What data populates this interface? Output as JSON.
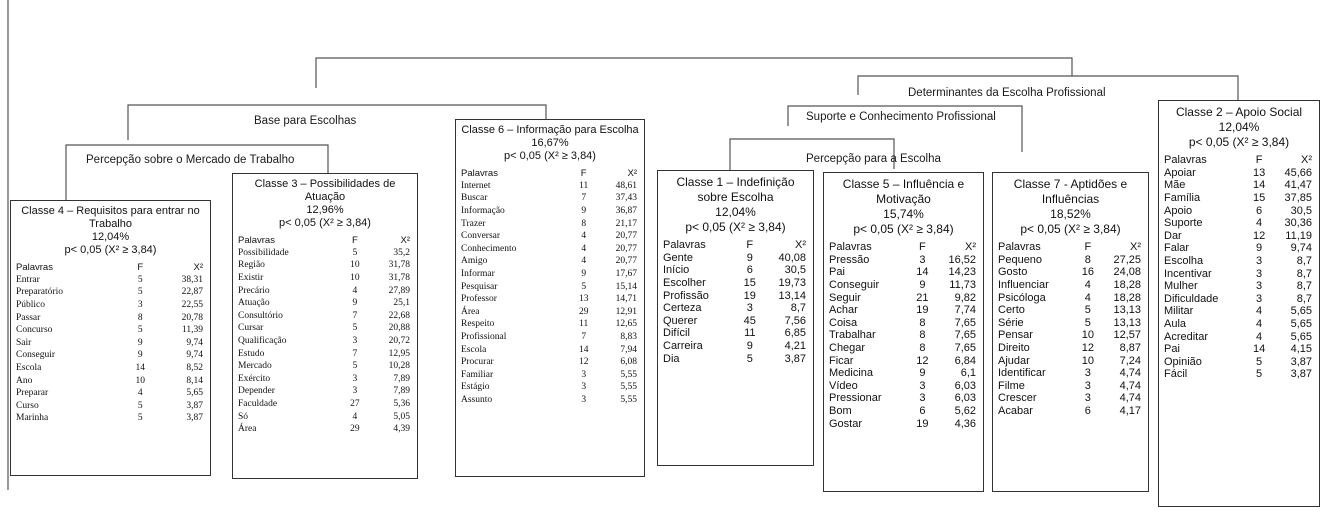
{
  "labels": {
    "determinantes": "Determinantes da Escolha Profissional",
    "base": "Base para Escolhas",
    "suporte": "Suporte e Conhecimento Profissional",
    "percepcao_mercado": "Percepção sobre o Mercado de Trabalho",
    "percepcao_escolha": "Percepção para a Escolha"
  },
  "col_headers": {
    "palavras": "Palavras",
    "f": "F",
    "x": "X²"
  },
  "classes": {
    "c4": {
      "title": "Classe 4 – Requisitos para entrar no Trabalho",
      "pct": "12,04%",
      "p": "p< 0,05 (X² ≥ 3,84)",
      "rows": [
        [
          "Entrar",
          "5",
          "38,31"
        ],
        [
          "Preparatório",
          "5",
          "22,87"
        ],
        [
          "Público",
          "3",
          "22,55"
        ],
        [
          "Passar",
          "8",
          "20,78"
        ],
        [
          "Concurso",
          "5",
          "11,39"
        ],
        [
          "Sair",
          "9",
          "9,74"
        ],
        [
          "Conseguir",
          "9",
          "9,74"
        ],
        [
          "Escola",
          "14",
          "8,52"
        ],
        [
          "Ano",
          "10",
          "8,14"
        ],
        [
          "Preparar",
          "4",
          "5,65"
        ],
        [
          "Curso",
          "5",
          "3,87"
        ],
        [
          "Marinha",
          "5",
          "3,87"
        ]
      ]
    },
    "c3": {
      "title": "Classe 3 – Possibilidades de Atuação",
      "pct": "12,96%",
      "p": "p< 0,05 (X² ≥ 3,84)",
      "rows": [
        [
          "Possibilidade",
          "5",
          "35,2"
        ],
        [
          "Região",
          "10",
          "31,78"
        ],
        [
          "Existir",
          "10",
          "31,78"
        ],
        [
          "Precário",
          "4",
          "27,89"
        ],
        [
          "Atuação",
          "9",
          "25,1"
        ],
        [
          "Consultório",
          "7",
          "22,68"
        ],
        [
          "Cursar",
          "5",
          "20,88"
        ],
        [
          "Qualificação",
          "3",
          "20,72"
        ],
        [
          "Estudo",
          "7",
          "12,95"
        ],
        [
          "Mercado",
          "5",
          "10,28"
        ],
        [
          "Exército",
          "3",
          "7,89"
        ],
        [
          "Depender",
          "3",
          "7,89"
        ],
        [
          "Faculdade",
          "27",
          "5,36"
        ],
        [
          "Só",
          "4",
          "5,05"
        ],
        [
          "Área",
          "29",
          "4,39"
        ]
      ]
    },
    "c6": {
      "title": "Classe 6 – Informação para Escolha",
      "pct": "16,67%",
      "p": "p< 0,05 (X² ≥ 3,84)",
      "rows": [
        [
          "Internet",
          "11",
          "48,61"
        ],
        [
          "Buscar",
          "7",
          "37,43"
        ],
        [
          "Informação",
          "9",
          "36,87"
        ],
        [
          "Trazer",
          "8",
          "21,17"
        ],
        [
          "Conversar",
          "4",
          "20,77"
        ],
        [
          "Conhecimento",
          "4",
          "20,77"
        ],
        [
          "Amigo",
          "4",
          "20,77"
        ],
        [
          "Informar",
          "9",
          "17,67"
        ],
        [
          "Pesquisar",
          "5",
          "15,14"
        ],
        [
          "Professor",
          "13",
          "14,71"
        ],
        [
          "Área",
          "29",
          "12,91"
        ],
        [
          "Respeito",
          "11",
          "12,65"
        ],
        [
          "Profissional",
          "7",
          "8,83"
        ],
        [
          "Escola",
          "14",
          "7,94"
        ],
        [
          "Procurar",
          "12",
          "6,08"
        ],
        [
          "Familiar",
          "3",
          "5,55"
        ],
        [
          "Estágio",
          "3",
          "5,55"
        ],
        [
          "Assunto",
          "3",
          "5,55"
        ]
      ]
    },
    "c1": {
      "title": "Classe 1 – Indefinição sobre Escolha",
      "pct": "12,04%",
      "p": "p< 0,05 (X² ≥ 3,84)",
      "rows": [
        [
          "Gente",
          "9",
          "40,08"
        ],
        [
          "Início",
          "6",
          "30,5"
        ],
        [
          "Escolher",
          "15",
          "19,73"
        ],
        [
          "Profissão",
          "19",
          "13,14"
        ],
        [
          "Certeza",
          "3",
          "8,7"
        ],
        [
          "Querer",
          "45",
          "7,56"
        ],
        [
          "Difícil",
          "11",
          "6,85"
        ],
        [
          "Carreira",
          "9",
          "4,21"
        ],
        [
          "Dia",
          "5",
          "3,87"
        ]
      ]
    },
    "c5": {
      "title": "Classe 5 – Influência e Motivação",
      "pct": "15,74%",
      "p": "p< 0,05 (X² ≥ 3,84)",
      "rows": [
        [
          "Pressão",
          "3",
          "16,52"
        ],
        [
          "Pai",
          "14",
          "14,23"
        ],
        [
          "Conseguir",
          "9",
          "11,73"
        ],
        [
          "Seguir",
          "21",
          "9,82"
        ],
        [
          "Achar",
          "19",
          "7,74"
        ],
        [
          "Coisa",
          "8",
          "7,65"
        ],
        [
          "Trabalhar",
          "8",
          "7,65"
        ],
        [
          "Chegar",
          "8",
          "7,65"
        ],
        [
          "Ficar",
          "12",
          "6,84"
        ],
        [
          "Medicina",
          "9",
          "6,1"
        ],
        [
          "Vídeo",
          "3",
          "6,03"
        ],
        [
          "Pressionar",
          "3",
          "6,03"
        ],
        [
          "Bom",
          "6",
          "5,62"
        ],
        [
          "Gostar",
          "19",
          "4,36"
        ]
      ]
    },
    "c7": {
      "title": "Classe 7 - Aptidões e Influências",
      "pct": "18,52%",
      "p": "p< 0,05 (X² ≥ 3,84)",
      "rows": [
        [
          "Pequeno",
          "8",
          "27,25"
        ],
        [
          "Gosto",
          "16",
          "24,08"
        ],
        [
          "Influenciar",
          "4",
          "18,28"
        ],
        [
          "Psicóloga",
          "4",
          "18,28"
        ],
        [
          "Certo",
          "5",
          "13,13"
        ],
        [
          "Série",
          "5",
          "13,13"
        ],
        [
          "Pensar",
          "10",
          "12,57"
        ],
        [
          "Direito",
          "12",
          "8,87"
        ],
        [
          "Ajudar",
          "10",
          "7,24"
        ],
        [
          "Identificar",
          "3",
          "4,74"
        ],
        [
          "Filme",
          "3",
          "4,74"
        ],
        [
          "Crescer",
          "3",
          "4,74"
        ],
        [
          "Acabar",
          "6",
          "4,17"
        ]
      ]
    },
    "c2": {
      "title": "Classe 2 – Apoio Social",
      "pct": "12,04%",
      "p": "p< 0,05 (X² ≥ 3,84)",
      "rows": [
        [
          "Apoiar",
          "13",
          "45,66"
        ],
        [
          "Mãe",
          "14",
          "41,47"
        ],
        [
          "Família",
          "15",
          "37,85"
        ],
        [
          "Apoio",
          "6",
          "30,5"
        ],
        [
          "Suporte",
          "4",
          "30,36"
        ],
        [
          "Dar",
          "12",
          "11,19"
        ],
        [
          "Falar",
          "9",
          "9,74"
        ],
        [
          "Escolha",
          "3",
          "8,7"
        ],
        [
          "Incentivar",
          "3",
          "8,7"
        ],
        [
          "Mulher",
          "3",
          "8,7"
        ],
        [
          "Dificuldade",
          "3",
          "8,7"
        ],
        [
          "Militar",
          "4",
          "5,65"
        ],
        [
          "Aula",
          "4",
          "5,65"
        ],
        [
          "Acreditar",
          "4",
          "5,65"
        ],
        [
          "Pai",
          "14",
          "4,15"
        ],
        [
          "Opinião",
          "5",
          "3,87"
        ],
        [
          "Fácil",
          "5",
          "3,87"
        ]
      ]
    }
  }
}
